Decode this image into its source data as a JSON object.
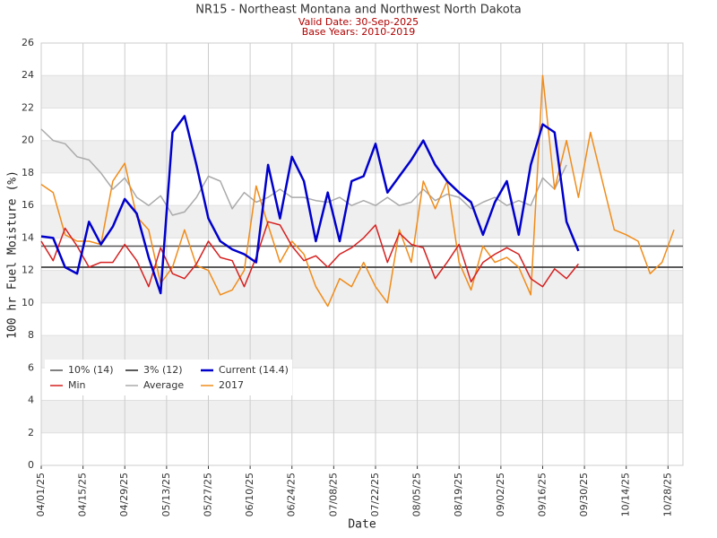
{
  "chart_data": {
    "type": "line",
    "title": "NR15 - Northeast Montana and Northwest North Dakota",
    "subtitle": "Valid Date: 30-Sep-2025",
    "subtitle2": "Base Years: 2010-2019",
    "x_label": "Date",
    "y_label": "100 hr Fuel Moisture (%)",
    "x": [
      "04/01/25",
      "04/05/25",
      "04/09/25",
      "04/13/25",
      "04/17/25",
      "04/21/25",
      "04/25/25",
      "04/29/25",
      "05/03/25",
      "05/07/25",
      "05/11/25",
      "05/15/25",
      "05/19/25",
      "05/23/25",
      "05/27/25",
      "05/31/25",
      "06/04/25",
      "06/08/25",
      "06/12/25",
      "06/16/25",
      "06/20/25",
      "06/24/25",
      "06/28/25",
      "07/02/25",
      "07/06/25",
      "07/10/25",
      "07/14/25",
      "07/18/25",
      "07/22/25",
      "07/26/25",
      "07/30/25",
      "08/03/25",
      "08/07/25",
      "08/11/25",
      "08/15/25",
      "08/19/25",
      "08/23/25",
      "08/27/25",
      "08/31/25",
      "09/04/25",
      "09/08/25",
      "09/12/25",
      "09/16/25",
      "09/20/25",
      "09/24/25",
      "09/28/25",
      "10/02/25",
      "10/06/25",
      "10/10/25",
      "10/14/25",
      "10/18/25",
      "10/22/25",
      "10/26/25",
      "10/30/25"
    ],
    "series": [
      {
        "name": "Current (14.4)",
        "color": "#0000cc",
        "width": 2.5,
        "values": [
          14.1,
          14.0,
          12.2,
          11.8,
          15.0,
          13.6,
          14.7,
          16.4,
          15.5,
          12.8,
          10.6,
          20.5,
          21.5,
          18.5,
          15.2,
          13.8,
          13.3,
          13.0,
          12.5,
          18.5,
          15.2,
          19.0,
          17.5,
          13.8,
          16.8,
          13.8,
          17.5,
          17.8,
          19.8,
          16.8,
          17.8,
          18.8,
          20.0,
          18.5,
          17.5,
          16.8,
          16.2,
          14.2,
          16.2,
          17.5,
          14.2,
          18.5,
          21.0,
          20.5,
          15.0,
          13.2,
          null,
          null,
          null,
          null,
          null,
          null,
          null,
          null
        ]
      },
      {
        "name": "Min",
        "color": "#d62020",
        "width": 1.5,
        "values": [
          13.8,
          12.6,
          14.6,
          13.5,
          12.2,
          12.5,
          12.5,
          13.6,
          12.6,
          11.0,
          13.4,
          11.8,
          11.5,
          12.4,
          13.8,
          12.8,
          12.6,
          11.0,
          12.8,
          15.0,
          14.8,
          13.5,
          12.6,
          12.9,
          12.2,
          13.0,
          13.4,
          14.0,
          14.8,
          12.5,
          14.3,
          13.6,
          13.4,
          11.5,
          12.5,
          13.6,
          11.3,
          12.5,
          13.0,
          13.4,
          13.0,
          11.5,
          11.0,
          12.1,
          11.5,
          12.4,
          null,
          null,
          null,
          null,
          null,
          null,
          null,
          null
        ]
      },
      {
        "name": "Average",
        "color": "#aaaaaa",
        "width": 1.5,
        "values": [
          20.7,
          20.0,
          19.8,
          19.0,
          18.8,
          18.0,
          17.0,
          17.7,
          16.5,
          16.0,
          16.6,
          15.4,
          15.6,
          16.5,
          17.8,
          17.5,
          15.8,
          16.8,
          16.2,
          16.5,
          17.0,
          16.5,
          16.5,
          16.3,
          16.2,
          16.5,
          16.0,
          16.3,
          16.0,
          16.5,
          16.0,
          16.2,
          17.0,
          16.3,
          16.7,
          16.5,
          15.8,
          16.2,
          16.5,
          16.0,
          16.3,
          16.0,
          17.7,
          17.0,
          18.5,
          null,
          null,
          null,
          null,
          null,
          null,
          null,
          null,
          null
        ]
      },
      {
        "name": "2017",
        "color": "#f08c1a",
        "width": 1.5,
        "values": [
          17.3,
          16.8,
          14.2,
          13.8,
          13.8,
          13.6,
          17.5,
          18.6,
          15.3,
          14.5,
          11.2,
          12.2,
          14.5,
          12.3,
          12.0,
          10.5,
          10.8,
          12.0,
          17.2,
          14.8,
          12.5,
          13.8,
          13.0,
          11.0,
          9.8,
          11.5,
          11.0,
          12.5,
          11.0,
          10.0,
          14.5,
          12.5,
          17.5,
          15.8,
          17.5,
          12.5,
          10.8,
          13.5,
          12.5,
          12.8,
          12.2,
          10.5,
          24.0,
          17.0,
          20.0,
          16.5,
          20.5,
          17.5,
          14.5,
          14.2,
          13.8,
          11.8,
          12.5,
          14.5
        ]
      }
    ],
    "thresholds": [
      {
        "name": "10% (14)",
        "color": "#555555",
        "value": 13.5
      },
      {
        "name": "3% (12)",
        "color": "#222222",
        "value": 12.2
      }
    ],
    "xlim": [
      "04/01/25",
      "11/02/25"
    ],
    "xticks": [
      "04/01/25",
      "04/15/25",
      "04/29/25",
      "05/13/25",
      "05/27/25",
      "06/10/25",
      "06/24/25",
      "07/08/25",
      "07/22/25",
      "08/05/25",
      "08/19/25",
      "09/02/25",
      "09/16/25",
      "09/30/25",
      "10/14/25",
      "10/28/25"
    ],
    "ylim": [
      0,
      26
    ],
    "yticks": [
      0,
      2,
      4,
      6,
      8,
      10,
      12,
      14,
      16,
      18,
      20,
      22,
      24,
      26
    ],
    "grid": true
  }
}
